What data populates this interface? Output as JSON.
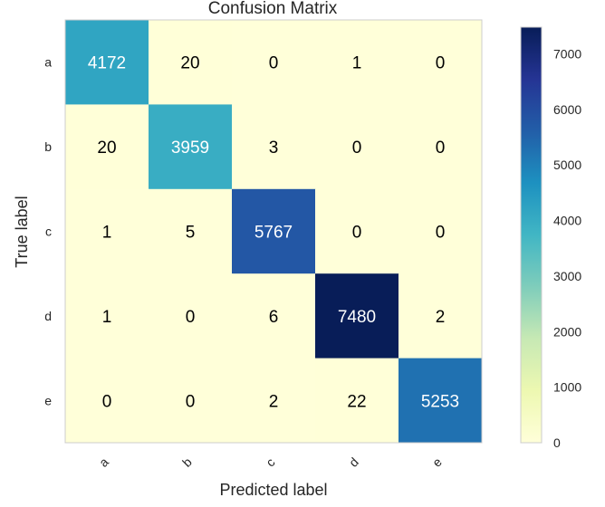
{
  "chart_data": {
    "type": "heatmap",
    "title": "Confusion Matrix",
    "xlabel": "Predicted label",
    "ylabel": "True label",
    "x_categories": [
      "a",
      "b",
      "c",
      "d",
      "e"
    ],
    "y_categories": [
      "a",
      "b",
      "c",
      "d",
      "e"
    ],
    "values": [
      [
        4172,
        20,
        0,
        1,
        0
      ],
      [
        20,
        3959,
        3,
        0,
        0
      ],
      [
        1,
        5,
        5767,
        0,
        0
      ],
      [
        1,
        0,
        6,
        7480,
        2
      ],
      [
        0,
        0,
        2,
        22,
        5253
      ]
    ],
    "colorbar": {
      "range": [
        0,
        7480
      ],
      "ticks": [
        0,
        1000,
        2000,
        3000,
        4000,
        5000,
        6000,
        7000
      ],
      "colormap": "YlGnBu"
    },
    "grid": false
  }
}
